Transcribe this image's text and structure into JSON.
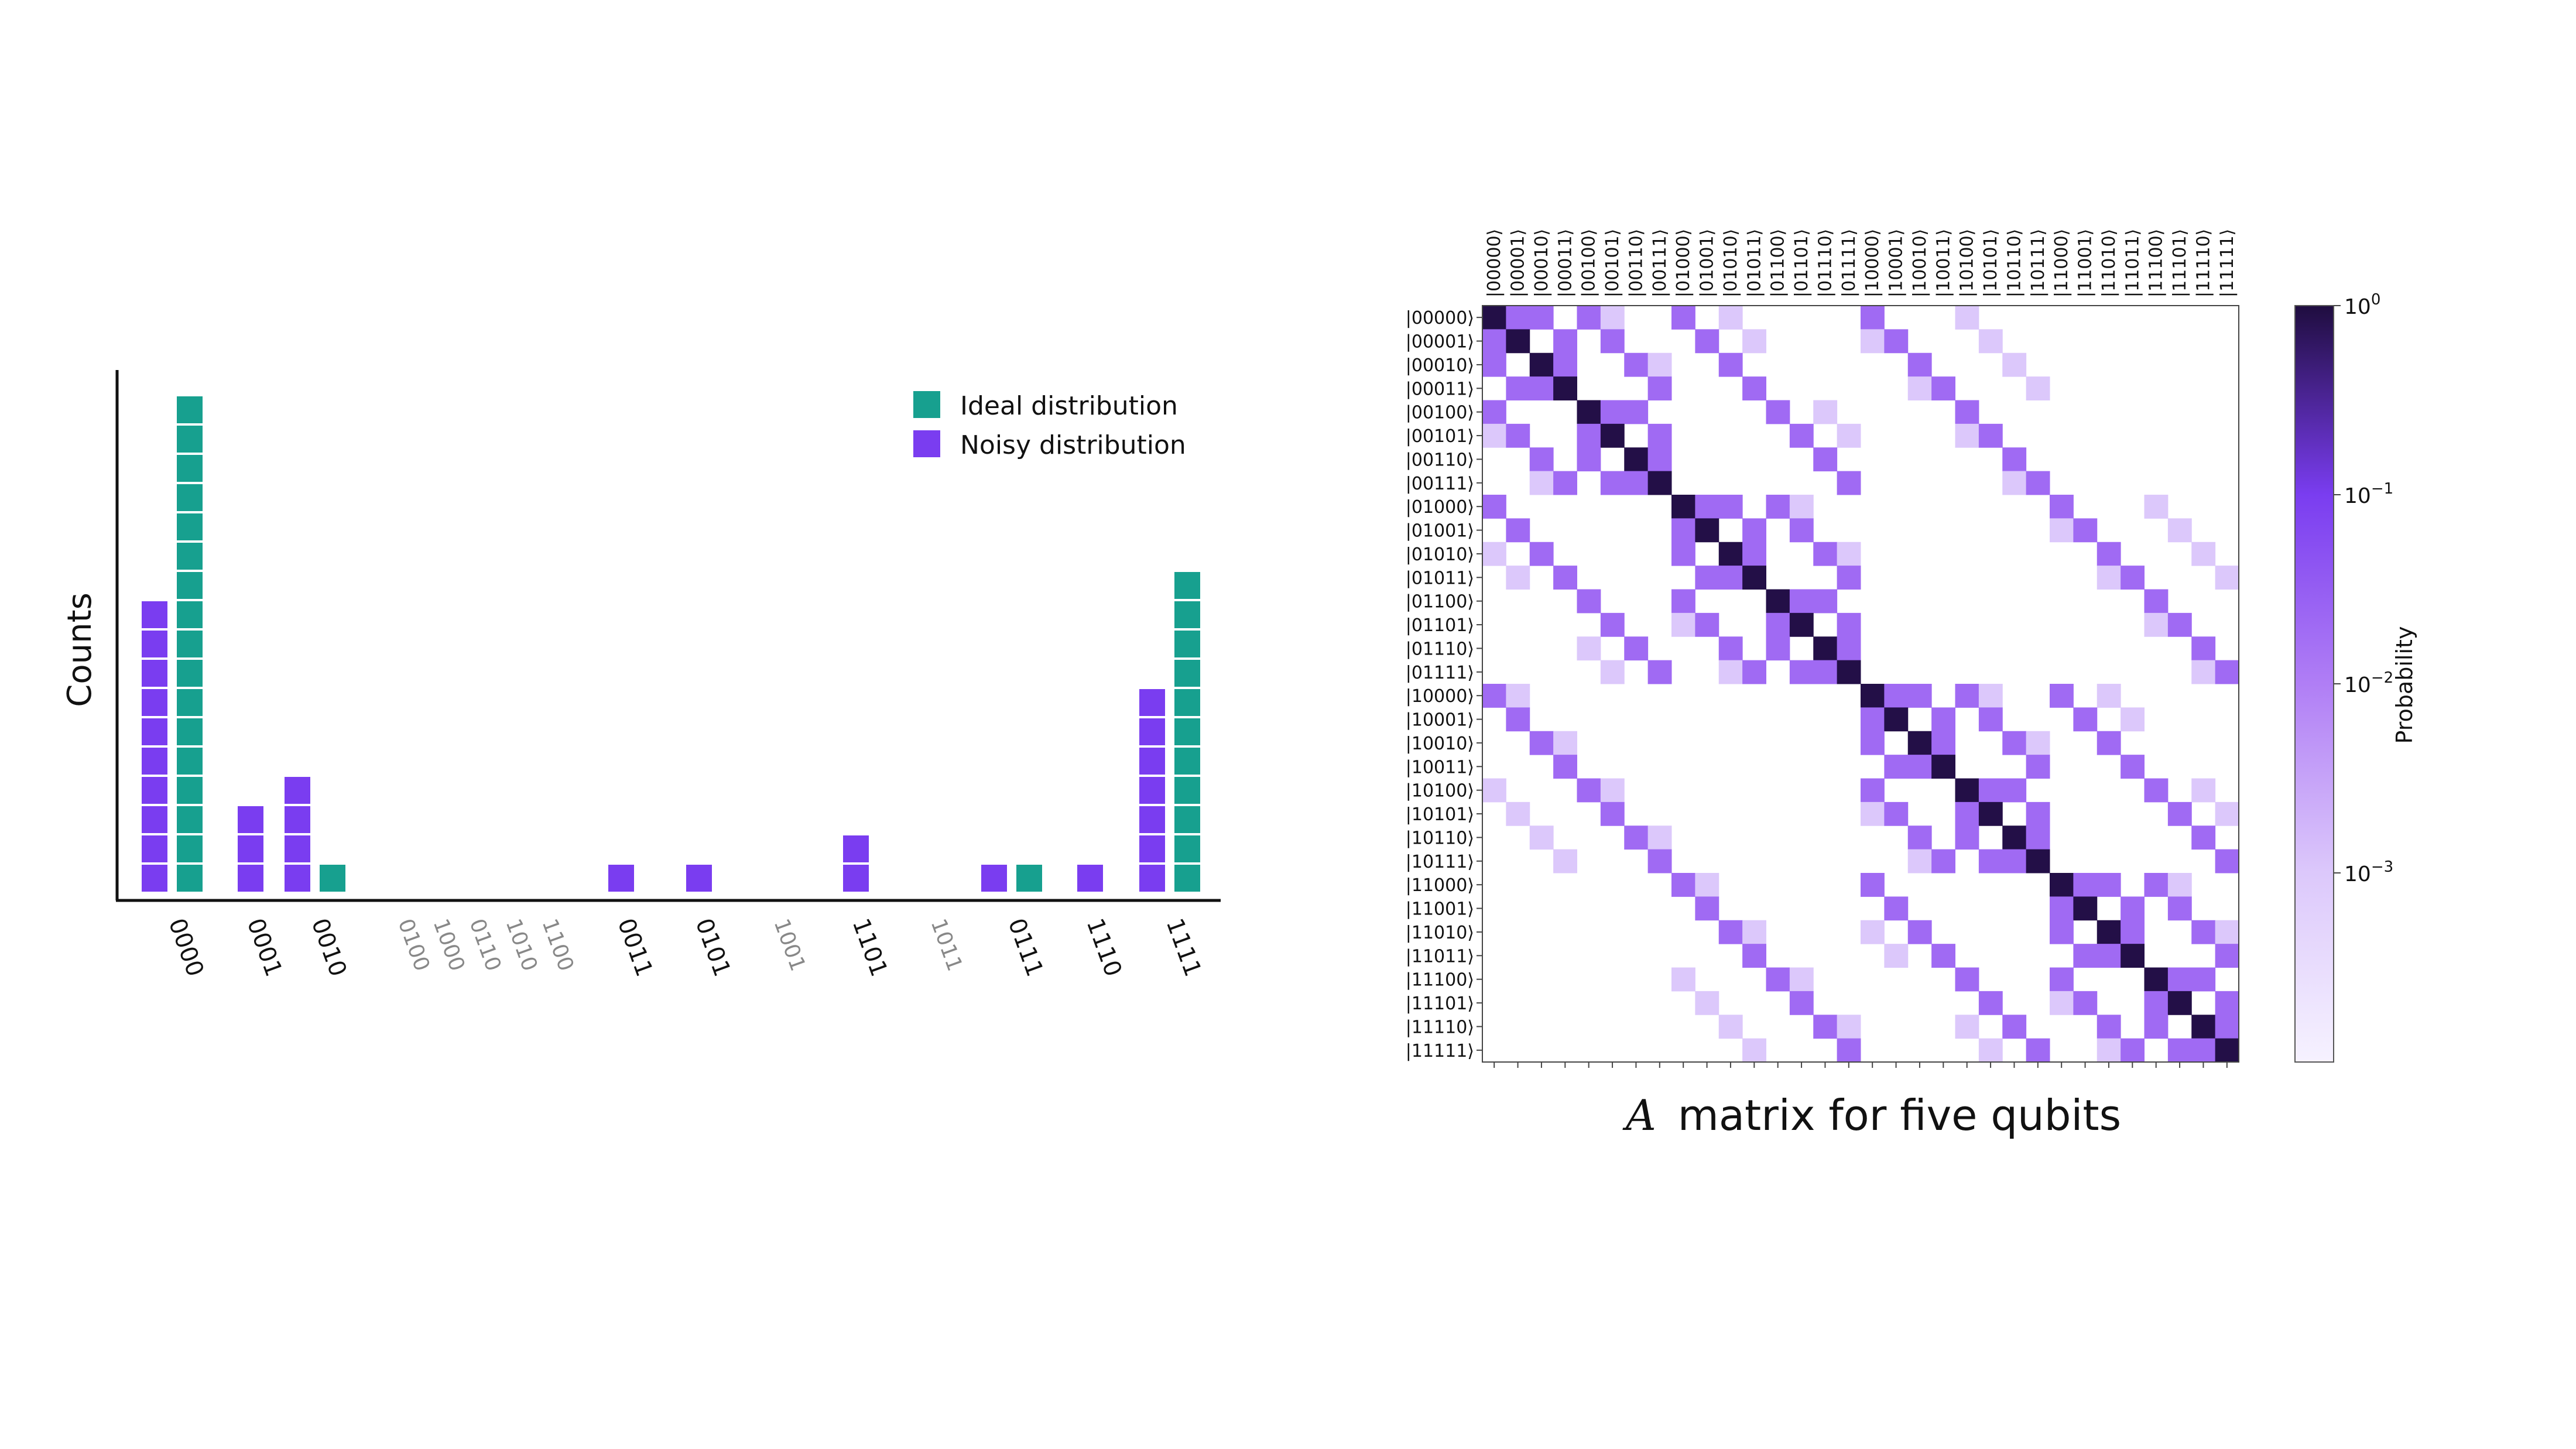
{
  "chart_data": [
    {
      "type": "bar",
      "ylabel": "Counts",
      "xlabel": "",
      "categories": [
        "0000",
        "0001",
        "0010",
        "0100",
        "1000",
        "0110",
        "1010",
        "1100",
        "0011",
        "0101",
        "1001",
        "1101",
        "1011",
        "0111",
        "1110",
        "1111"
      ],
      "faded_categories": [
        "0100",
        "1000",
        "0110",
        "1010",
        "1100",
        "1001",
        "1011"
      ],
      "series": [
        {
          "name": "Ideal distribution",
          "color": "#17a08f",
          "values": [
            17,
            0,
            1,
            0,
            0,
            0,
            0,
            0,
            0,
            0,
            0,
            0,
            0,
            1,
            0,
            11
          ]
        },
        {
          "name": "Noisy distribution",
          "color": "#7a3df0",
          "values": [
            10,
            3,
            4,
            0,
            0,
            0,
            0,
            0,
            1,
            1,
            0,
            2,
            0,
            1,
            1,
            7
          ]
        }
      ],
      "legend_placement": "top-right",
      "grid": false
    },
    {
      "type": "heatmap",
      "caption_italic": "A",
      "caption": "matrix for five qubits",
      "rows": [
        "|00000⟩",
        "|00001⟩",
        "|00010⟩",
        "|00011⟩",
        "|00100⟩",
        "|00101⟩",
        "|00110⟩",
        "|00111⟩",
        "|01000⟩",
        "|01001⟩",
        "|01010⟩",
        "|01011⟩",
        "|01100⟩",
        "|01101⟩",
        "|01110⟩",
        "|01111⟩",
        "|10000⟩",
        "|10001⟩",
        "|10010⟩",
        "|10011⟩",
        "|10100⟩",
        "|10101⟩",
        "|10110⟩",
        "|10111⟩",
        "|11000⟩",
        "|11001⟩",
        "|11010⟩",
        "|11011⟩",
        "|11100⟩",
        "|11101⟩",
        "|11110⟩",
        "|11111⟩"
      ],
      "columns": [
        "|00000⟩",
        "|00001⟩",
        "|00010⟩",
        "|00011⟩",
        "|00100⟩",
        "|00101⟩",
        "|00110⟩",
        "|00111⟩",
        "|01000⟩",
        "|01001⟩",
        "|01010⟩",
        "|01011⟩",
        "|01100⟩",
        "|01101⟩",
        "|01110⟩",
        "|01111⟩",
        "|10000⟩",
        "|10001⟩",
        "|10010⟩",
        "|10011⟩",
        "|10100⟩",
        "|10101⟩",
        "|10110⟩",
        "|10111⟩",
        "|11000⟩",
        "|11001⟩",
        "|11010⟩",
        "|11011⟩",
        "|11100⟩",
        "|11101⟩",
        "|11110⟩",
        "|11111⟩"
      ],
      "colorbar": {
        "label": "Probability",
        "ticks": [
          {
            "base": "10",
            "exp": "0",
            "value": 1
          },
          {
            "base": "10",
            "exp": "−1",
            "value": 0.1
          },
          {
            "base": "10",
            "exp": "−2",
            "value": 0.01
          },
          {
            "base": "10",
            "exp": "−3",
            "value": 0.001
          }
        ],
        "scale": "log",
        "range": [
          0.0001,
          1
        ],
        "color_low": "#f6f2ff",
        "color_high": "#1f0d3f"
      },
      "value_levels": {
        "diagonal": 0.9,
        "single_bit_flip": 0.02,
        "two_bit_flip": 0.001
      },
      "scale": "log"
    }
  ]
}
